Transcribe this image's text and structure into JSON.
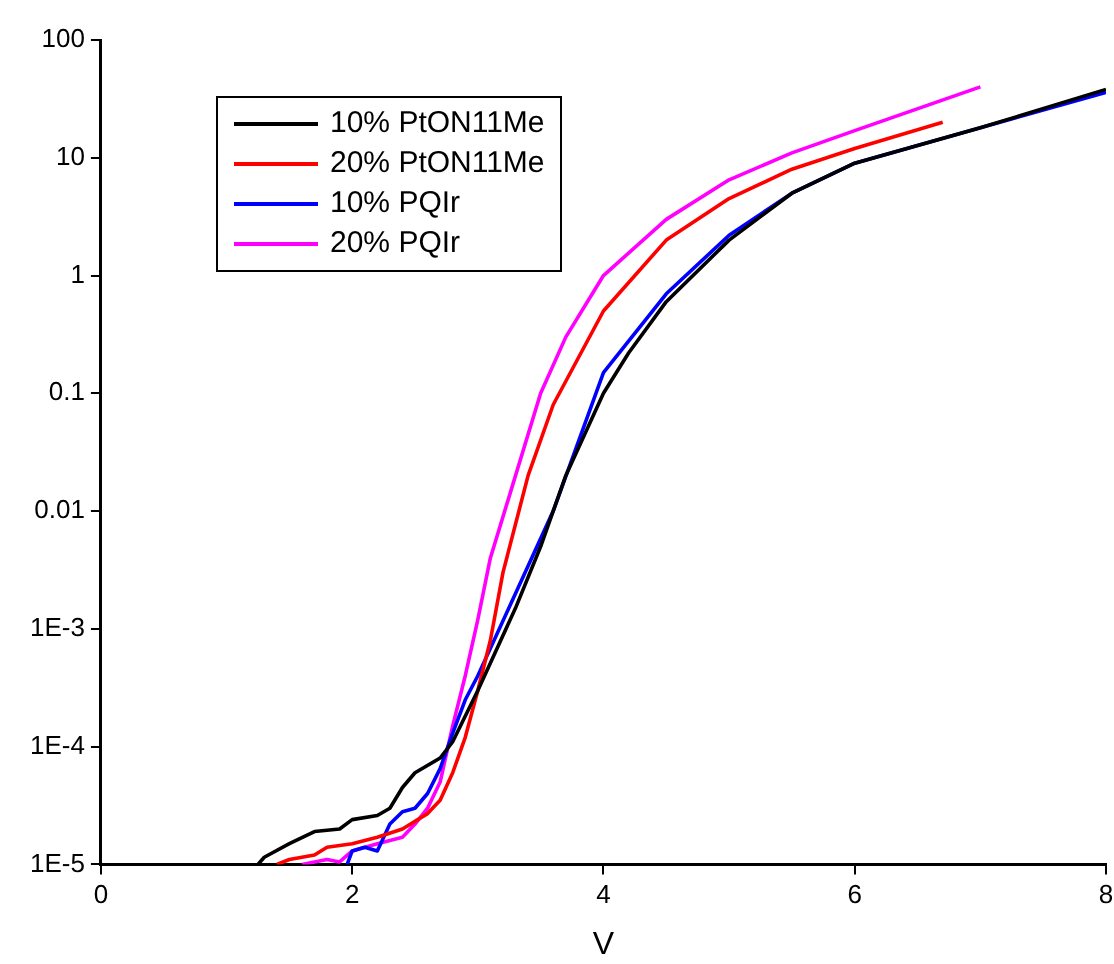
{
  "chart_data": {
    "type": "line",
    "xlabel": "V",
    "xlim": [
      0,
      8
    ],
    "xticks": [
      0,
      2,
      4,
      6,
      8
    ],
    "ylim": [
      1e-05,
      100
    ],
    "yticks": [
      {
        "value": 1e-05,
        "label": "1E-5"
      },
      {
        "value": 0.0001,
        "label": "1E-4"
      },
      {
        "value": 0.001,
        "label": "1E-3"
      },
      0.01,
      0.1,
      1,
      10,
      100
    ],
    "log": "y",
    "grid": false,
    "legend": "top left",
    "marker": "none",
    "line_style": "solid",
    "series": [
      {
        "name": "10% PtON11Me",
        "color": "#000000",
        "x": [
          1.25,
          1.3,
          1.5,
          1.7,
          1.9,
          2.0,
          2.2,
          2.3,
          2.4,
          2.5,
          2.7,
          2.8,
          3.0,
          3.3,
          3.5,
          3.7,
          4.0,
          4.2,
          4.5,
          5.0,
          5.5,
          6.0,
          7.0,
          8.0
        ],
        "values": [
          1e-05,
          1.15e-05,
          1.5e-05,
          1.9e-05,
          2e-05,
          2.4e-05,
          2.6e-05,
          3e-05,
          4.5e-05,
          6e-05,
          8e-05,
          0.00011,
          0.0003,
          0.0015,
          0.005,
          0.02,
          0.1,
          0.22,
          0.6,
          2,
          5,
          9,
          18,
          38
        ]
      },
      {
        "name": "20% PtON11Me",
        "color": "#ff0000",
        "x": [
          1.4,
          1.5,
          1.7,
          1.8,
          2.0,
          2.2,
          2.4,
          2.6,
          2.7,
          2.8,
          2.9,
          3.0,
          3.1,
          3.2,
          3.4,
          3.6,
          4.0,
          4.5,
          5.0,
          5.5,
          6.0,
          6.7
        ],
        "values": [
          1e-05,
          1.1e-05,
          1.2e-05,
          1.4e-05,
          1.5e-05,
          1.7e-05,
          2e-05,
          2.7e-05,
          3.5e-05,
          6e-05,
          0.00012,
          0.0003,
          0.0008,
          0.003,
          0.02,
          0.08,
          0.5,
          2,
          4.5,
          8,
          12,
          20
        ]
      },
      {
        "name": "10% PQIr",
        "color": "#0000ff",
        "x": [
          1.96,
          2.0,
          2.1,
          2.2,
          2.3,
          2.4,
          2.5,
          2.6,
          2.7,
          2.8,
          2.9,
          3.0,
          3.3,
          3.6,
          4.0,
          4.5,
          5.0,
          5.5,
          6.0,
          7.0,
          8.0
        ],
        "values": [
          1e-05,
          1.3e-05,
          1.4e-05,
          1.3e-05,
          2.2e-05,
          2.8e-05,
          3e-05,
          4e-05,
          6.5e-05,
          0.00013,
          0.00025,
          0.0004,
          0.002,
          0.01,
          0.15,
          0.7,
          2.2,
          5,
          9,
          18,
          36
        ]
      },
      {
        "name": "20% PQIr",
        "color": "#ff00ff",
        "x": [
          1.6,
          1.8,
          1.9,
          2.0,
          2.2,
          2.4,
          2.5,
          2.6,
          2.7,
          2.8,
          2.9,
          3.0,
          3.1,
          3.3,
          3.5,
          3.7,
          4.0,
          4.5,
          5.0,
          5.5,
          6.0,
          7.0
        ],
        "values": [
          1e-05,
          1.1e-05,
          1.05e-05,
          1.3e-05,
          1.5e-05,
          1.7e-05,
          2.2e-05,
          3e-05,
          5e-05,
          0.00015,
          0.0004,
          0.0012,
          0.004,
          0.02,
          0.1,
          0.3,
          1,
          3,
          6.5,
          11,
          17,
          40
        ]
      }
    ]
  }
}
